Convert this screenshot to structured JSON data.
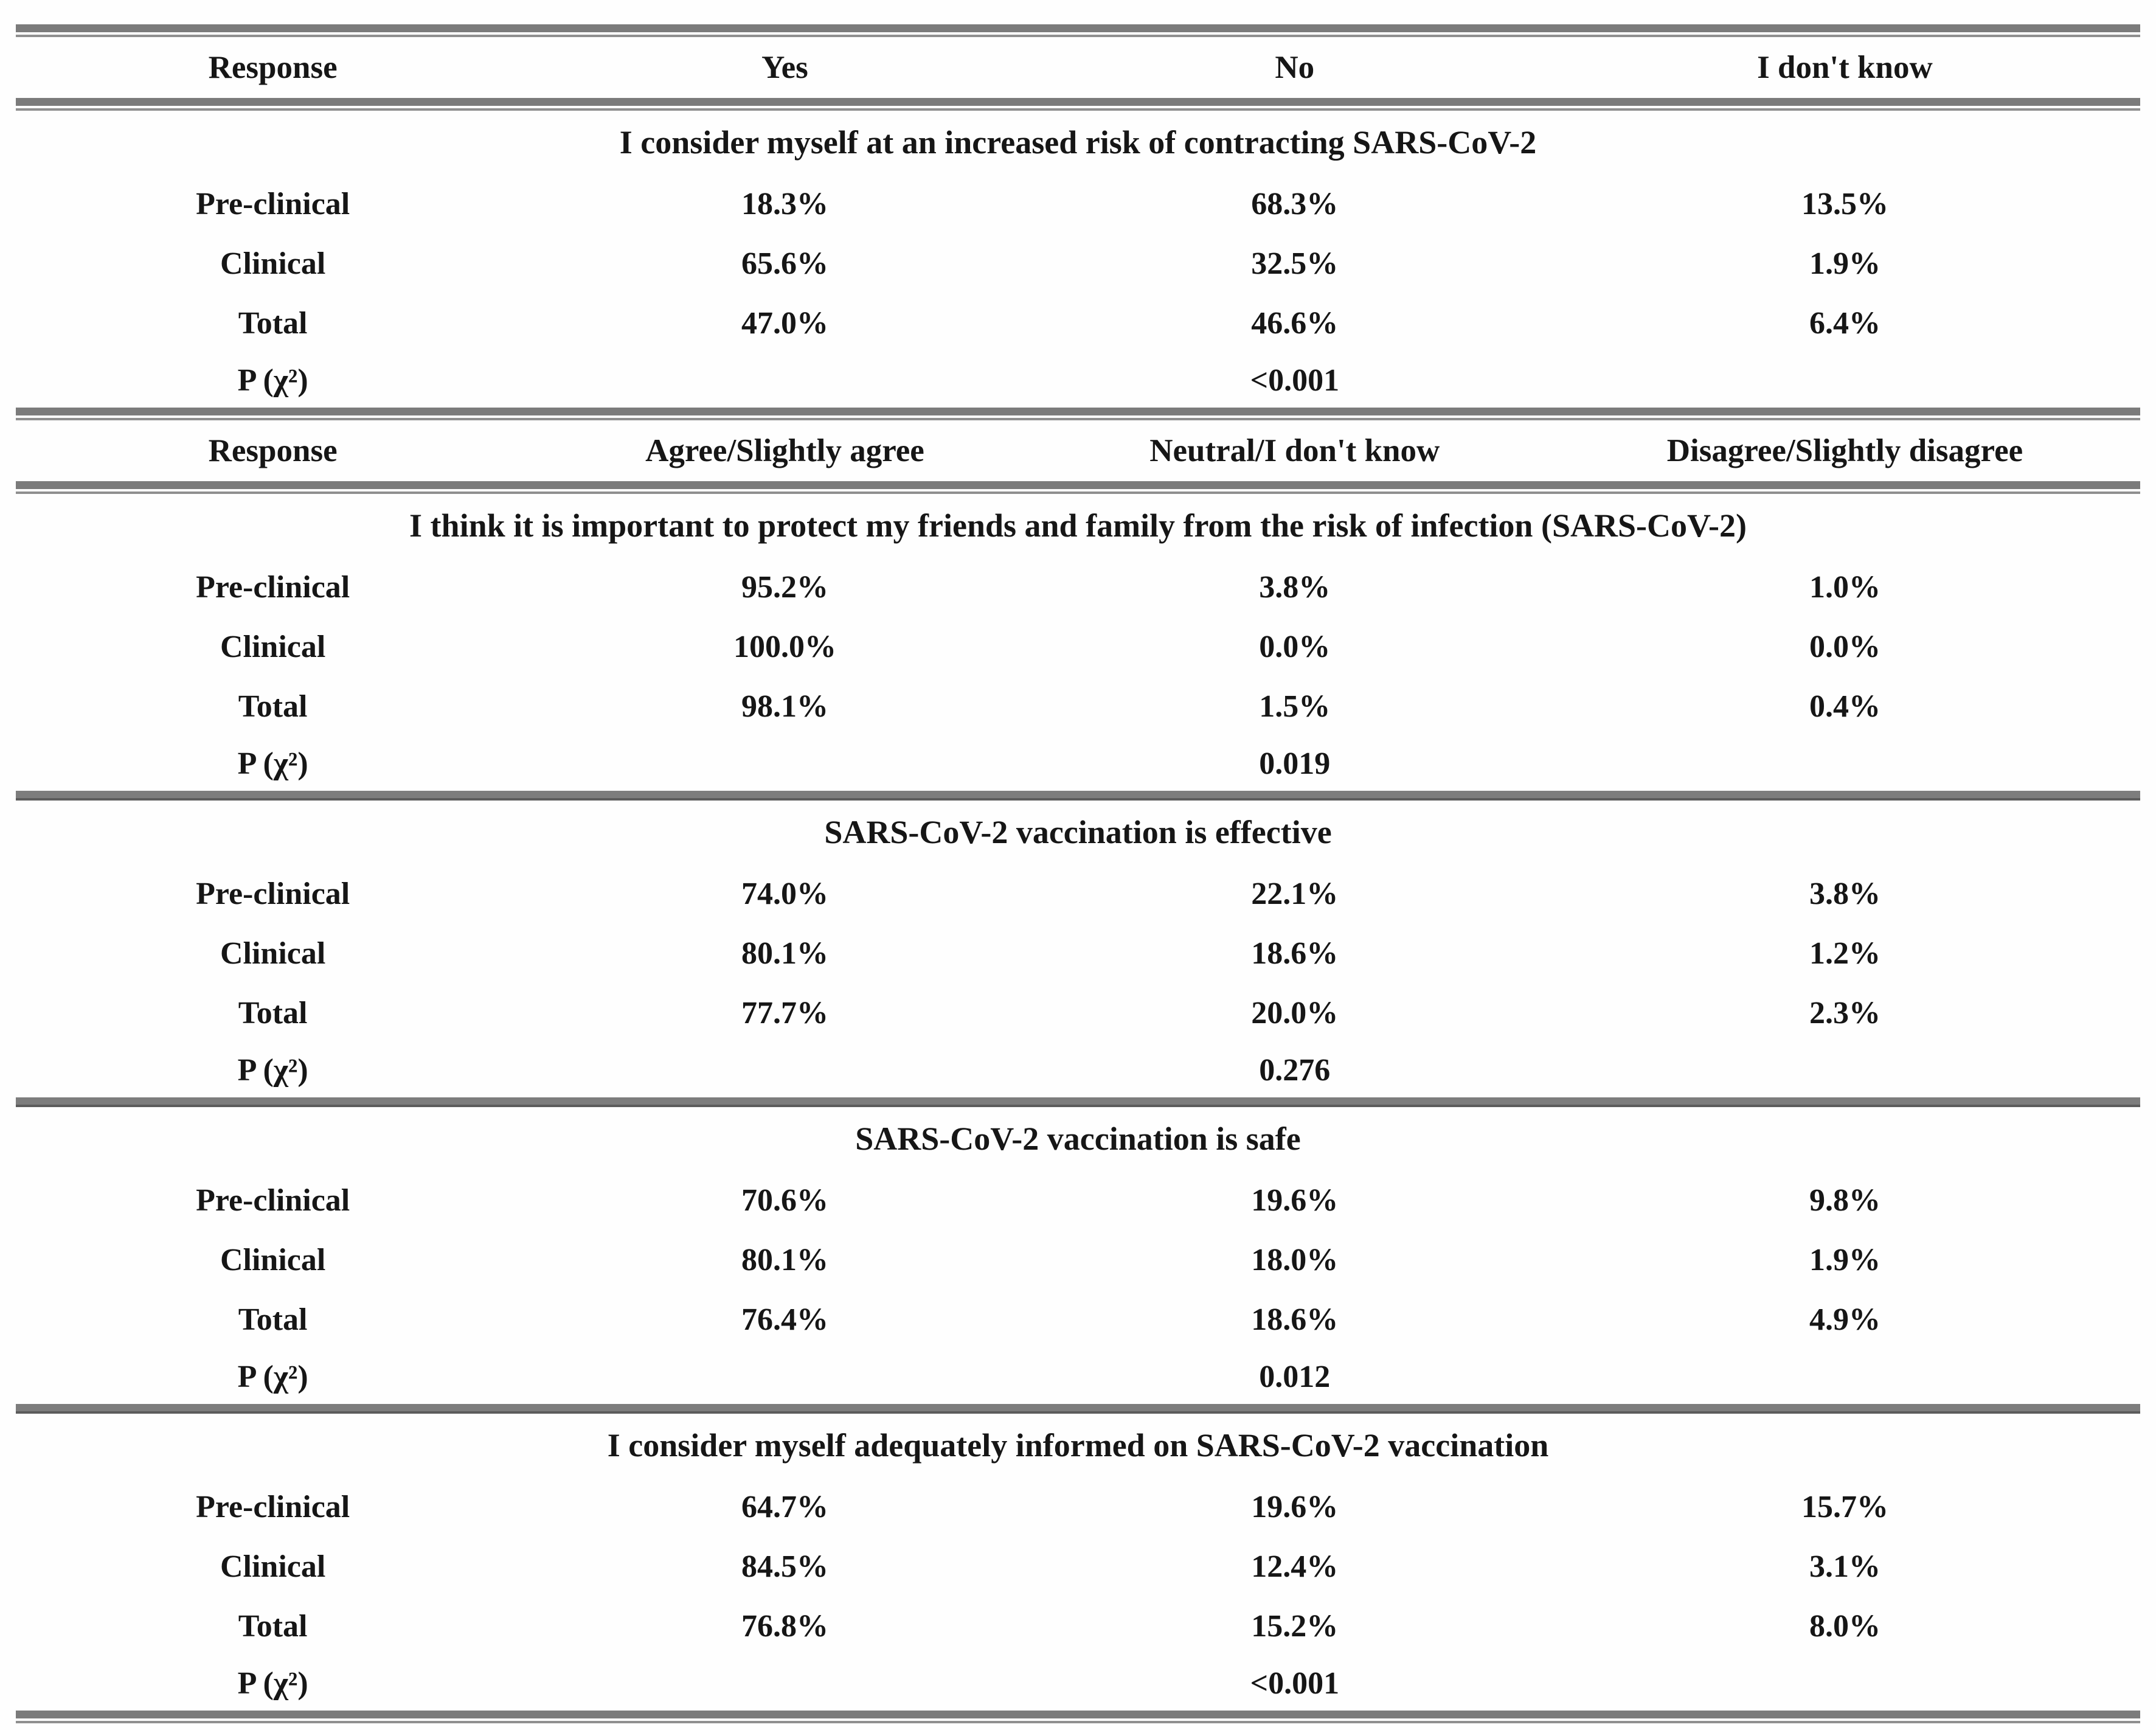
{
  "colors": {
    "background": "#fefefe",
    "text": "#161616",
    "rule_thick": "#7b7b7b",
    "rule_thin": "#8f8f8f",
    "rule_edge": "#5c5c5c"
  },
  "table": {
    "header1": {
      "cells": [
        "Response",
        "Yes",
        "No",
        "I don't know"
      ]
    },
    "header2": {
      "cells": [
        "Response",
        "Agree/Slightly agree",
        "Neutral/I don't know",
        "Disagree/Slightly disagree"
      ]
    },
    "sections": [
      {
        "title": "I consider myself at an increased risk of contracting SARS-CoV-2",
        "rows": [
          {
            "label": "Pre-clinical",
            "values": [
              "18.3%",
              "68.3%",
              "13.5%"
            ]
          },
          {
            "label": "Clinical",
            "values": [
              "65.6%",
              "32.5%",
              "1.9%"
            ]
          },
          {
            "label": "Total",
            "values": [
              "47.0%",
              "46.6%",
              "6.4%"
            ]
          }
        ],
        "p_label": "P (χ²)",
        "p_value": "<0.001"
      },
      {
        "title": "I think it is important to protect my friends and family from the risk of infection (SARS-CoV-2)",
        "rows": [
          {
            "label": "Pre-clinical",
            "values": [
              "95.2%",
              "3.8%",
              "1.0%"
            ]
          },
          {
            "label": "Clinical",
            "values": [
              "100.0%",
              "0.0%",
              "0.0%"
            ]
          },
          {
            "label": "Total",
            "values": [
              "98.1%",
              "1.5%",
              "0.4%"
            ]
          }
        ],
        "p_label": "P (χ²)",
        "p_value": "0.019"
      },
      {
        "title": "SARS-CoV-2 vaccination is effective",
        "rows": [
          {
            "label": "Pre-clinical",
            "values": [
              "74.0%",
              "22.1%",
              "3.8%"
            ]
          },
          {
            "label": "Clinical",
            "values": [
              "80.1%",
              "18.6%",
              "1.2%"
            ]
          },
          {
            "label": "Total",
            "values": [
              "77.7%",
              "20.0%",
              "2.3%"
            ]
          }
        ],
        "p_label": "P (χ²)",
        "p_value": "0.276"
      },
      {
        "title": "SARS-CoV-2 vaccination is safe",
        "rows": [
          {
            "label": "Pre-clinical",
            "values": [
              "70.6%",
              "19.6%",
              "9.8%"
            ]
          },
          {
            "label": "Clinical",
            "values": [
              "80.1%",
              "18.0%",
              "1.9%"
            ]
          },
          {
            "label": "Total",
            "values": [
              "76.4%",
              "18.6%",
              "4.9%"
            ]
          }
        ],
        "p_label": "P (χ²)",
        "p_value": "0.012"
      },
      {
        "title": "I consider myself adequately informed on SARS-CoV-2 vaccination",
        "rows": [
          {
            "label": "Pre-clinical",
            "values": [
              "64.7%",
              "19.6%",
              "15.7%"
            ]
          },
          {
            "label": "Clinical",
            "values": [
              "84.5%",
              "12.4%",
              "3.1%"
            ]
          },
          {
            "label": "Total",
            "values": [
              "76.8%",
              "15.2%",
              "8.0%"
            ]
          }
        ],
        "p_label": "P (χ²)",
        "p_value": "<0.001"
      }
    ]
  }
}
